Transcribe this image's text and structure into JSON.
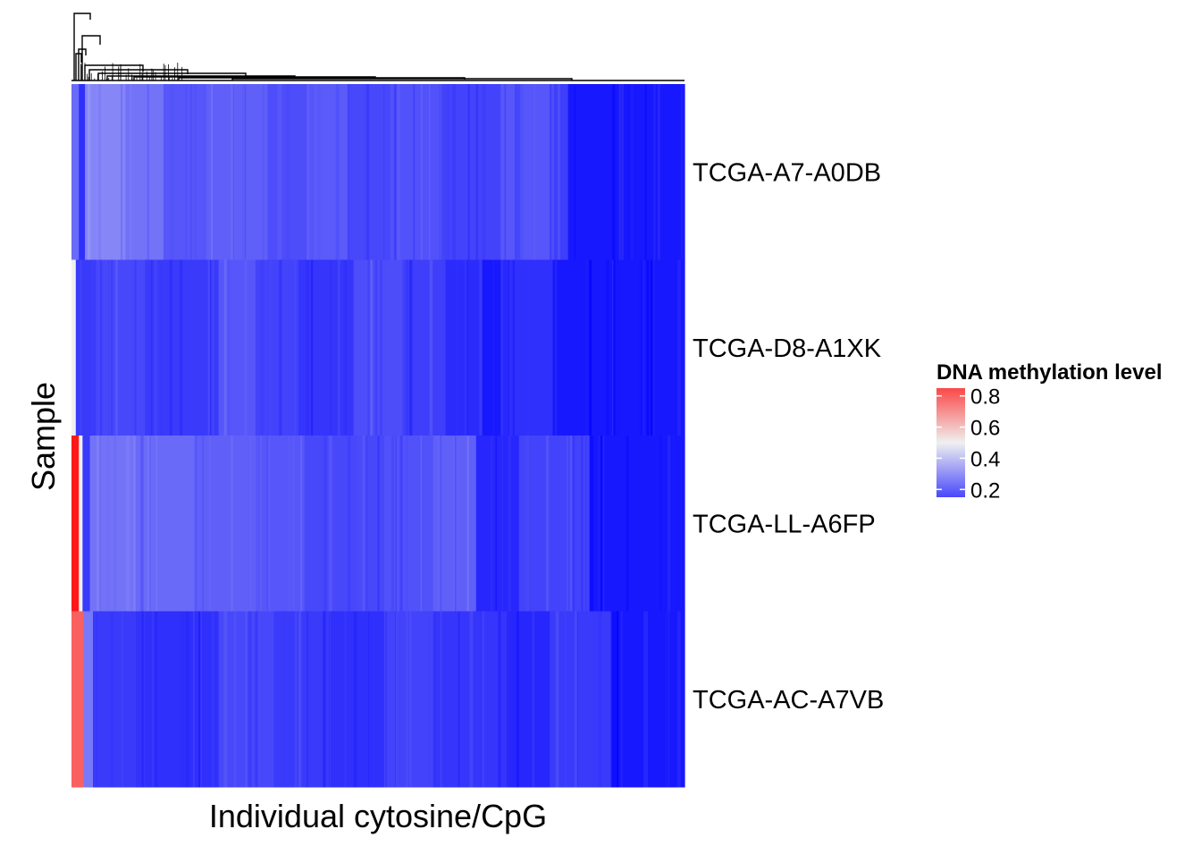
{
  "chart_data": {
    "type": "heatmap",
    "title": "",
    "xlabel": "Individual cytosine/CpG",
    "ylabel": "Sample",
    "rows": [
      "TCGA-A7-A0DB",
      "TCGA-D8-A1XK",
      "TCGA-LL-A6FP",
      "TCGA-AC-A7VB"
    ],
    "x_tick_labels": [],
    "column_dendrogram": true,
    "legend": {
      "title": "DNA methylation level",
      "ticks": [
        "0.8",
        "0.6",
        "0.4",
        "0.2"
      ],
      "tick_values": [
        0.8,
        0.6,
        0.4,
        0.2
      ],
      "range": [
        0.15,
        0.85
      ],
      "placement": "right"
    },
    "color_scale": {
      "low": "#0000ff",
      "mid": "#f0f0f0",
      "high": "#ff0000",
      "mid_value": 0.5
    },
    "column_order": "hierarchical clustering",
    "segments": [
      {
        "row": "TCGA-A7-A0DB",
        "bands": [
          {
            "from": 0.0,
            "to": 0.012,
            "value": 0.22
          },
          {
            "from": 0.012,
            "to": 0.022,
            "value": 0.1
          },
          {
            "from": 0.022,
            "to": 0.08,
            "value": 0.28
          },
          {
            "from": 0.08,
            "to": 0.15,
            "value": 0.24
          },
          {
            "from": 0.15,
            "to": 0.22,
            "value": 0.18
          },
          {
            "from": 0.22,
            "to": 0.32,
            "value": 0.2
          },
          {
            "from": 0.32,
            "to": 0.39,
            "value": 0.16
          },
          {
            "from": 0.39,
            "to": 0.45,
            "value": 0.19
          },
          {
            "from": 0.45,
            "to": 0.52,
            "value": 0.15
          },
          {
            "from": 0.52,
            "to": 0.6,
            "value": 0.17
          },
          {
            "from": 0.6,
            "to": 0.7,
            "value": 0.14
          },
          {
            "from": 0.7,
            "to": 0.78,
            "value": 0.18
          },
          {
            "from": 0.78,
            "to": 0.81,
            "value": 0.13
          },
          {
            "from": 0.81,
            "to": 1.0,
            "value": 0.05
          }
        ]
      },
      {
        "row": "TCGA-D8-A1XK",
        "bands": [
          {
            "from": 0.0,
            "to": 0.007,
            "value": 0.5
          },
          {
            "from": 0.007,
            "to": 0.04,
            "value": 0.12
          },
          {
            "from": 0.04,
            "to": 0.12,
            "value": 0.15
          },
          {
            "from": 0.12,
            "to": 0.24,
            "value": 0.12
          },
          {
            "from": 0.24,
            "to": 0.3,
            "value": 0.18
          },
          {
            "from": 0.3,
            "to": 0.37,
            "value": 0.14
          },
          {
            "from": 0.37,
            "to": 0.46,
            "value": 0.11
          },
          {
            "from": 0.46,
            "to": 0.54,
            "value": 0.16
          },
          {
            "from": 0.54,
            "to": 0.61,
            "value": 0.13
          },
          {
            "from": 0.61,
            "to": 0.67,
            "value": 0.09
          },
          {
            "from": 0.67,
            "to": 0.7,
            "value": 0.05
          },
          {
            "from": 0.7,
            "to": 0.785,
            "value": 0.1
          },
          {
            "from": 0.785,
            "to": 1.0,
            "value": 0.05
          }
        ]
      },
      {
        "row": "TCGA-LL-A6FP",
        "bands": [
          {
            "from": 0.0,
            "to": 0.012,
            "value": 0.95
          },
          {
            "from": 0.012,
            "to": 0.018,
            "value": 0.5
          },
          {
            "from": 0.018,
            "to": 0.03,
            "value": 0.12
          },
          {
            "from": 0.03,
            "to": 0.1,
            "value": 0.24
          },
          {
            "from": 0.1,
            "to": 0.2,
            "value": 0.22
          },
          {
            "from": 0.2,
            "to": 0.31,
            "value": 0.2
          },
          {
            "from": 0.31,
            "to": 0.38,
            "value": 0.18
          },
          {
            "from": 0.38,
            "to": 0.51,
            "value": 0.15
          },
          {
            "from": 0.51,
            "to": 0.59,
            "value": 0.17
          },
          {
            "from": 0.59,
            "to": 0.66,
            "value": 0.2
          },
          {
            "from": 0.66,
            "to": 0.73,
            "value": 0.08
          },
          {
            "from": 0.73,
            "to": 0.845,
            "value": 0.14
          },
          {
            "from": 0.845,
            "to": 1.0,
            "value": 0.05
          }
        ]
      },
      {
        "row": "TCGA-AC-A7VB",
        "bands": [
          {
            "from": 0.0,
            "to": 0.02,
            "value": 0.8
          },
          {
            "from": 0.02,
            "to": 0.035,
            "value": 0.25
          },
          {
            "from": 0.035,
            "to": 0.12,
            "value": 0.12
          },
          {
            "from": 0.12,
            "to": 0.24,
            "value": 0.1
          },
          {
            "from": 0.24,
            "to": 0.33,
            "value": 0.15
          },
          {
            "from": 0.33,
            "to": 0.42,
            "value": 0.12
          },
          {
            "from": 0.42,
            "to": 0.51,
            "value": 0.1
          },
          {
            "from": 0.51,
            "to": 0.59,
            "value": 0.14
          },
          {
            "from": 0.59,
            "to": 0.71,
            "value": 0.11
          },
          {
            "from": 0.71,
            "to": 0.78,
            "value": 0.08
          },
          {
            "from": 0.78,
            "to": 0.88,
            "value": 0.12
          },
          {
            "from": 0.88,
            "to": 1.0,
            "value": 0.05
          }
        ]
      }
    ]
  }
}
